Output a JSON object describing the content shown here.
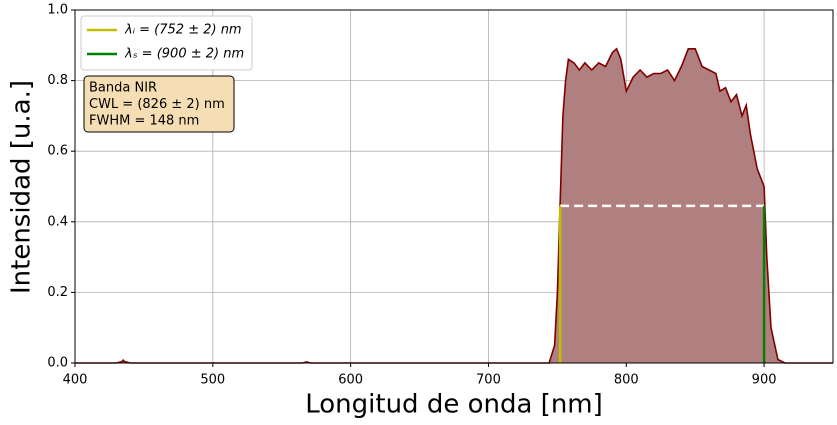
{
  "chart_data": {
    "type": "line",
    "xlabel": "Longitud de onda [nm]",
    "ylabel": "Intensidad [u.a.]",
    "x": [
      400,
      430,
      434,
      435,
      436,
      440,
      565,
      568,
      571,
      600,
      700,
      744,
      748,
      750,
      752,
      754,
      756,
      758,
      762,
      766,
      770,
      775,
      780,
      785,
      790,
      793,
      796,
      800,
      805,
      810,
      815,
      820,
      825,
      830,
      835,
      840,
      845,
      850,
      855,
      860,
      865,
      868,
      872,
      876,
      880,
      884,
      887,
      890,
      895,
      900,
      902,
      905,
      910,
      915,
      950
    ],
    "series": [
      {
        "color": "#800000",
        "fill": "#b08080",
        "values": [
          0,
          0,
          0.004,
          0.008,
          0.004,
          0,
          0,
          0.003,
          0,
          0,
          0,
          0,
          0.05,
          0.2,
          0.45,
          0.7,
          0.8,
          0.86,
          0.85,
          0.83,
          0.85,
          0.83,
          0.85,
          0.84,
          0.88,
          0.89,
          0.86,
          0.77,
          0.81,
          0.83,
          0.81,
          0.82,
          0.82,
          0.83,
          0.8,
          0.84,
          0.89,
          0.89,
          0.84,
          0.83,
          0.82,
          0.77,
          0.78,
          0.74,
          0.76,
          0.7,
          0.73,
          0.65,
          0.55,
          0.5,
          0.3,
          0.1,
          0.01,
          0,
          0
        ]
      }
    ],
    "level": 0.445,
    "markers": [
      {
        "name": "λᵢ = (752 ± 2) nm",
        "color": "#bfbf00",
        "x": 752
      },
      {
        "name": "λₛ = (900 ± 2) nm",
        "color": "#008000",
        "x": 900
      }
    ],
    "annotation": [
      "Banda NIR",
      "CWL = (826 ± 2) nm",
      "FWHM = 148 nm"
    ],
    "xlim": [
      400,
      950
    ],
    "ylim": [
      0,
      1
    ],
    "xticks": [
      400,
      500,
      600,
      700,
      800,
      900
    ],
    "yticks": [
      {
        "value": 0,
        "label": "0.0"
      },
      {
        "value": 0.2,
        "label": "0.2"
      },
      {
        "value": 0.4,
        "label": "0.4"
      },
      {
        "value": 0.6,
        "label": "0.6"
      },
      {
        "value": 0.8,
        "label": "0.8"
      },
      {
        "value": 1,
        "label": "1.0"
      }
    ],
    "grid": true,
    "legend": "upper-left"
  }
}
